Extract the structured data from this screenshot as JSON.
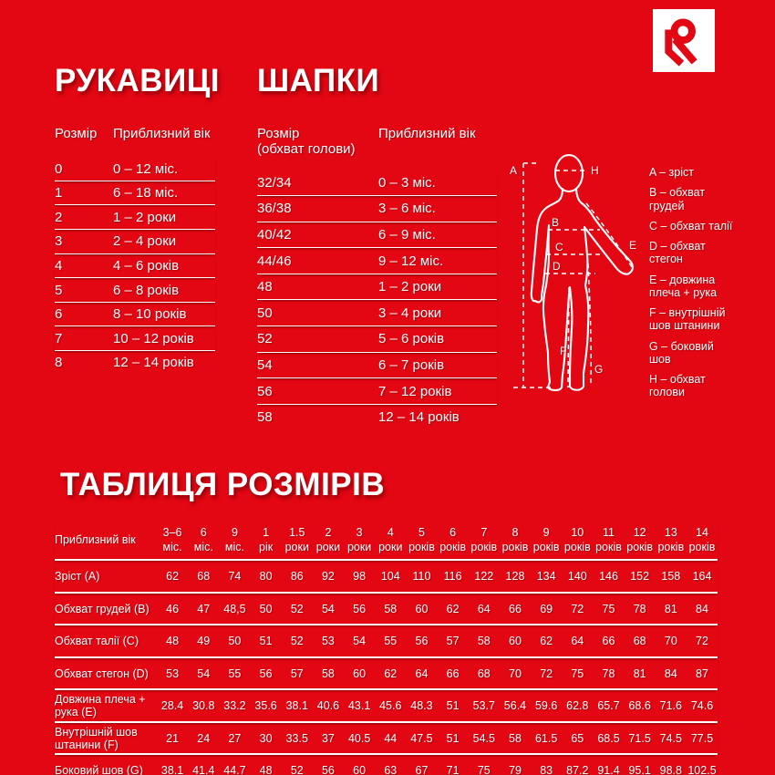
{
  "colors": {
    "background": "#e30613",
    "text": "#ffffff",
    "logo_background": "#ffffff",
    "logo_red": "#e30613"
  },
  "gloves": {
    "title": "РУКАВИЦІ",
    "col_size": "Розмір",
    "col_age": "Приблизний вік",
    "rows": [
      [
        "0",
        "0 – 12 міс."
      ],
      [
        "1",
        "6 – 18 міс."
      ],
      [
        "2",
        "1 – 2 роки"
      ],
      [
        "3",
        "2 – 4 роки"
      ],
      [
        "4",
        "4 – 6 років"
      ],
      [
        "5",
        "6 – 8 років"
      ],
      [
        "6",
        "8 – 10 років"
      ],
      [
        "7",
        "10 – 12 років"
      ],
      [
        "8",
        "12 – 14 років"
      ]
    ]
  },
  "hats": {
    "title": "ШАПКИ",
    "col_size_line1": "Розмір",
    "col_size_line2": "(обхват голови)",
    "col_age": "Приблизний вік",
    "rows": [
      [
        "32/34",
        "0 – 3 міс."
      ],
      [
        "36/38",
        "3 – 6 міс."
      ],
      [
        "40/42",
        "6 – 9 міс."
      ],
      [
        "44/46",
        "9 – 12 міс."
      ],
      [
        "48",
        "1 – 2 роки"
      ],
      [
        "50",
        "3 – 4 роки"
      ],
      [
        "52",
        "5 – 6 років"
      ],
      [
        "54",
        "6 – 7 років"
      ],
      [
        "56",
        "7 – 12 років"
      ],
      [
        "58",
        "12 – 14 років"
      ]
    ]
  },
  "figure": {
    "letters": [
      "A",
      "B",
      "C",
      "D",
      "E",
      "F",
      "G",
      "H"
    ]
  },
  "legend": {
    "items": [
      "A – зріст",
      "B – обхват грудей",
      "C – обхват талії",
      "D – обхват стегон",
      "E – довжина плеча + рука",
      "F – внутрішній шов штанини",
      "G – боковий шов",
      "H – обхват голови"
    ]
  },
  "size_table": {
    "title": "ТАБЛИЦЯ РОЗМІРІВ",
    "row_header": "Приблизний вік",
    "age_columns": [
      [
        "3–6",
        "міс."
      ],
      [
        "6",
        "міс."
      ],
      [
        "9",
        "міс."
      ],
      [
        "1",
        "рік"
      ],
      [
        "1.5",
        "роки"
      ],
      [
        "2",
        "роки"
      ],
      [
        "3",
        "роки"
      ],
      [
        "4",
        "роки"
      ],
      [
        "5",
        "років"
      ],
      [
        "6",
        "років"
      ],
      [
        "7",
        "років"
      ],
      [
        "8",
        "років"
      ],
      [
        "9",
        "років"
      ],
      [
        "10",
        "років"
      ],
      [
        "11",
        "років"
      ],
      [
        "12",
        "років"
      ],
      [
        "13",
        "років"
      ],
      [
        "14",
        "років"
      ]
    ],
    "rows": [
      {
        "label": "Зріст (A)",
        "values": [
          "62",
          "68",
          "74",
          "80",
          "86",
          "92",
          "98",
          "104",
          "110",
          "116",
          "122",
          "128",
          "134",
          "140",
          "146",
          "152",
          "158",
          "164"
        ]
      },
      {
        "label": "Обхват грудей (B)",
        "values": [
          "46",
          "47",
          "48,5",
          "50",
          "52",
          "54",
          "56",
          "58",
          "60",
          "62",
          "64",
          "66",
          "69",
          "72",
          "75",
          "78",
          "81",
          "84"
        ]
      },
      {
        "label": "Обхват талії (C)",
        "values": [
          "48",
          "49",
          "50",
          "51",
          "52",
          "53",
          "54",
          "55",
          "56",
          "57",
          "58",
          "60",
          "62",
          "64",
          "66",
          "68",
          "70",
          "72"
        ]
      },
      {
        "label": "Обхват стегон (D)",
        "values": [
          "53",
          "54",
          "55",
          "56",
          "57",
          "58",
          "60",
          "62",
          "64",
          "66",
          "68",
          "70",
          "72",
          "75",
          "78",
          "81",
          "84",
          "87"
        ]
      },
      {
        "label": "Довжина плеча + рука (E)",
        "values": [
          "28.4",
          "30.8",
          "33.2",
          "35.6",
          "38.1",
          "40.6",
          "43.1",
          "45.6",
          "48.3",
          "51",
          "53.7",
          "56.4",
          "59.6",
          "62.8",
          "65.7",
          "68.6",
          "71.6",
          "74.6"
        ]
      },
      {
        "label": "Внутрішній шов штанини (F)",
        "values": [
          "21",
          "24",
          "27",
          "30",
          "33.5",
          "37",
          "40.5",
          "44",
          "47.5",
          "51",
          "54.5",
          "58",
          "61.5",
          "65",
          "68.5",
          "71.5",
          "74.5",
          "77.5"
        ]
      },
      {
        "label": "Боковий шов (G)",
        "values": [
          "38.1",
          "41.4",
          "44.7",
          "48",
          "52",
          "56",
          "60",
          "63",
          "67",
          "71",
          "75",
          "79",
          "83",
          "87.2",
          "91.4",
          "95.1",
          "98.8",
          "102.5"
        ]
      }
    ]
  }
}
